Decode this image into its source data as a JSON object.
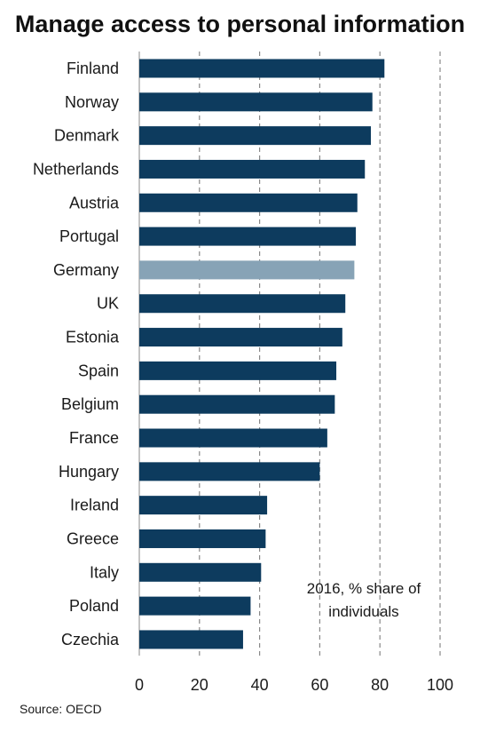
{
  "chart_data": {
    "type": "bar",
    "orientation": "horizontal",
    "title": "Manage access to personal information",
    "categories": [
      "Finland",
      "Norway",
      "Denmark",
      "Netherlands",
      "Austria",
      "Portugal",
      "Germany",
      "UK",
      "Estonia",
      "Spain",
      "Belgium",
      "France",
      "Hungary",
      "Ireland",
      "Greece",
      "Italy",
      "Poland",
      "Czechia"
    ],
    "values": [
      81.5,
      77.5,
      77,
      75,
      72.5,
      72,
      71.5,
      68.5,
      67.5,
      65.5,
      65,
      62.5,
      60,
      42.5,
      42,
      40.5,
      37,
      34.5
    ],
    "highlight": "Germany",
    "colors": {
      "bar": "#0d3b5e",
      "highlight": "#87a3b6",
      "grid": "#888888"
    },
    "xlim": [
      0,
      100
    ],
    "xticks": [
      "0",
      "20",
      "40",
      "60",
      "80",
      "100"
    ],
    "grid": "vertical dashed",
    "annotation": [
      "2016, % share of",
      "individuals"
    ],
    "source": "Source: OECD"
  }
}
